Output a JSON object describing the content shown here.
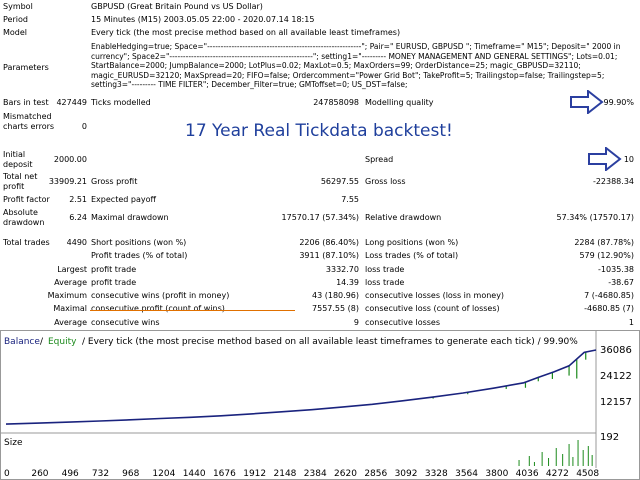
{
  "header": {
    "symbol": {
      "label": "Symbol",
      "value": "GBPUSD (Great Britain Pound vs US Dollar)"
    },
    "period": {
      "label": "Period",
      "value": "15 Minutes (M15) 2003.05.05 22:00 - 2020.07.14 18:15"
    },
    "model": {
      "label": "Model",
      "value": "Every tick (the most precise method based on all available least timeframes)"
    },
    "parameters": {
      "label": "Parameters",
      "value": "EnableHedging=true; Space=\"---------------------------------------------------------\"; Pair=\" EURUSD, GBPUSD \"; Timeframe=\" M15\"; Deposit=\" 2000 in currency\"; Space2=\"-----------------------------------------------------\"; setting1=\"--------- MONEY MANAGEMENT AND GENERAL SETTINGS\"; Lots=0.01; StartBalance=2000; JumpBalance=2000; LotPlus=0.02; MaxLot=0.5; MaxOrders=99; OrderDistance=25; magic_GBPUSD=32110; magic_EURUSD=32120; MaxSpread=20; FIFO=false; Ordercomment=\"Power Grid Bot\"; TakeProfit=5; Trailingstop=false; Trailingstep=5; setting3=\"--------- TIME FILTER\"; December_Filter=true; GMToffset=0; US_DST=false;"
    }
  },
  "stats": {
    "bars_in_test": {
      "label": "Bars in test",
      "value": "427449"
    },
    "ticks_modelled": {
      "label": "Ticks modelled",
      "value": "247858098"
    },
    "modelling_quality": {
      "label": "Modelling quality",
      "value": "99.90%"
    },
    "mismatched": {
      "label": "Mismatched charts errors",
      "value": "0"
    },
    "banner": "17 Year Real Tickdata backtest!",
    "initial_deposit": {
      "label": "Initial deposit",
      "value": "2000.00"
    },
    "spread": {
      "label": "Spread",
      "value": "10"
    },
    "total_net_profit": {
      "label": "Total net profit",
      "value": "33909.21"
    },
    "gross_profit": {
      "label": "Gross profit",
      "value": "56297.55"
    },
    "gross_loss": {
      "label": "Gross loss",
      "value": "-22388.34"
    },
    "profit_factor": {
      "label": "Profit factor",
      "value": "2.51"
    },
    "expected_payoff": {
      "label": "Expected payoff",
      "value": "7.55"
    },
    "absolute_drawdown": {
      "label": "Absolute drawdown",
      "value": "6.24"
    },
    "maximal_drawdown": {
      "label": "Maximal drawdown",
      "value": "17570.17 (57.34%)"
    },
    "relative_drawdown": {
      "label": "Relative drawdown",
      "value": "57.34% (17570.17)"
    },
    "total_trades": {
      "label": "Total trades",
      "value": "4490"
    },
    "short_positions": {
      "label": "Short positions (won %)",
      "value": "2206 (86.40%)"
    },
    "long_positions": {
      "label": "Long positions (won %)",
      "value": "2284 (87.78%)"
    },
    "profit_trades": {
      "label": "Profit trades (% of total)",
      "value": "3911 (87.10%)"
    },
    "loss_trades": {
      "label": "Loss trades (% of total)",
      "value": "579 (12.90%)"
    },
    "largest": {
      "label": "Largest",
      "profit_label": "profit trade",
      "profit_value": "3332.70",
      "loss_label": "loss trade",
      "loss_value": "-1035.38"
    },
    "average": {
      "label": "Average",
      "profit_label": "profit trade",
      "profit_value": "14.39",
      "loss_label": "loss trade",
      "loss_value": "-38.67"
    },
    "maximum": {
      "label": "Maximum",
      "wins_label": "consecutive wins (profit in money)",
      "wins_value": "43 (180.96)",
      "losses_label": "consecutive losses (loss in money)",
      "losses_value": "7 (-4680.85)"
    },
    "maximal": {
      "label": "Maximal",
      "wins_label": "consecutive profit (count of wins)",
      "wins_value": "7557.55 (8)",
      "losses_label": "consecutive loss (count of losses)",
      "losses_value": "-4680.85 (7)"
    },
    "average2": {
      "label": "Average",
      "wins_label": "consecutive wins",
      "wins_value": "9",
      "losses_label": "consecutive losses",
      "losses_value": "1"
    }
  },
  "colors": {
    "balance": "#1a237e",
    "equity": "#1b8a1b",
    "banner": "#1f3f9c",
    "arrow": "#2b3fa0",
    "strike": "#e07000"
  },
  "chart_data": {
    "type": "line",
    "title": "Every tick (the most precise method based on all available least timeframes to generate each tick) / 99.90%",
    "legend": {
      "balance": "Balance",
      "equity": "Equity"
    },
    "y_ticks": [
      "36086",
      "24122",
      "12157",
      "192"
    ],
    "x_ticks": [
      "0",
      "260",
      "496",
      "732",
      "968",
      "1204",
      "1440",
      "1676",
      "1912",
      "2148",
      "2384",
      "2620",
      "2856",
      "3092",
      "3328",
      "3564",
      "3800",
      "4036",
      "4272",
      "4508"
    ],
    "ylim": [
      192,
      36086
    ],
    "xlim": [
      0,
      4600
    ],
    "series": [
      {
        "name": "Balance",
        "x": [
          0,
          260,
          496,
          732,
          968,
          1204,
          1440,
          1676,
          1912,
          2148,
          2384,
          2620,
          2856,
          3092,
          3328,
          3564,
          3800,
          4036,
          4150,
          4272,
          4390,
          4508,
          4600
        ],
        "values": [
          2000,
          2450,
          2900,
          3400,
          3950,
          4550,
          5100,
          5800,
          6700,
          7650,
          8600,
          9800,
          11100,
          12700,
          14400,
          16300,
          18500,
          21000,
          23500,
          26000,
          28800,
          35000,
          36086
        ]
      },
      {
        "name": "Equity",
        "x": [
          0,
          260,
          496,
          732,
          968,
          1204,
          1440,
          1676,
          1912,
          2148,
          2384,
          2620,
          2856,
          3092,
          3328,
          3564,
          3800,
          4036,
          4150,
          4272,
          4390,
          4508,
          4600
        ],
        "values": [
          2000,
          2450,
          2900,
          3400,
          3950,
          4550,
          5100,
          5800,
          6700,
          7650,
          8600,
          9800,
          11100,
          12700,
          14400,
          16300,
          18500,
          21000,
          23500,
          26000,
          28800,
          35000,
          36086
        ]
      }
    ],
    "size_label": "Size"
  }
}
